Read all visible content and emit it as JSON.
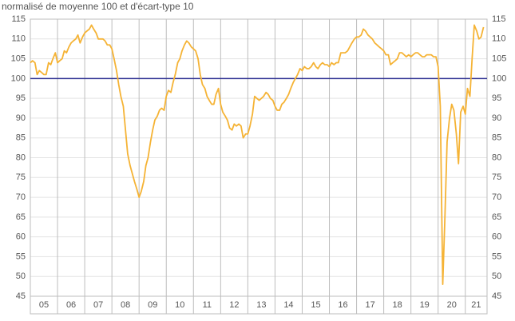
{
  "chart_data": {
    "type": "line",
    "subtitle": "normalisé de moyenne 100 et d'écart-type 10",
    "x": [
      5.0,
      5.08,
      5.17,
      5.25,
      5.33,
      5.42,
      5.5,
      5.58,
      5.67,
      5.75,
      5.83,
      5.92,
      6.0,
      6.08,
      6.17,
      6.25,
      6.33,
      6.42,
      6.5,
      6.58,
      6.67,
      6.75,
      6.83,
      6.92,
      7.0,
      7.08,
      7.17,
      7.25,
      7.33,
      7.42,
      7.5,
      7.58,
      7.67,
      7.75,
      7.83,
      7.92,
      8.0,
      8.08,
      8.17,
      8.25,
      8.33,
      8.42,
      8.5,
      8.58,
      8.67,
      8.75,
      8.83,
      8.92,
      9.0,
      9.08,
      9.17,
      9.25,
      9.33,
      9.42,
      9.5,
      9.58,
      9.67,
      9.75,
      9.83,
      9.92,
      10.0,
      10.08,
      10.17,
      10.25,
      10.33,
      10.42,
      10.5,
      10.58,
      10.67,
      10.75,
      10.83,
      10.92,
      11.0,
      11.08,
      11.17,
      11.25,
      11.33,
      11.42,
      11.5,
      11.58,
      11.67,
      11.75,
      11.83,
      11.92,
      12.0,
      12.08,
      12.17,
      12.25,
      12.33,
      12.42,
      12.5,
      12.58,
      12.67,
      12.75,
      12.83,
      12.92,
      13.0,
      13.08,
      13.17,
      13.25,
      13.33,
      13.42,
      13.5,
      13.58,
      13.67,
      13.75,
      13.83,
      13.92,
      14.0,
      14.08,
      14.17,
      14.25,
      14.33,
      14.42,
      14.5,
      14.58,
      14.67,
      14.75,
      14.83,
      14.92,
      15.0,
      15.08,
      15.17,
      15.25,
      15.33,
      15.42,
      15.5,
      15.58,
      15.67,
      15.75,
      15.83,
      15.92,
      16.0,
      16.08,
      16.17,
      16.25,
      16.33,
      16.42,
      16.5,
      16.58,
      16.67,
      16.75,
      16.83,
      16.92,
      17.0,
      17.08,
      17.17,
      17.25,
      17.33,
      17.42,
      17.5,
      17.58,
      17.67,
      17.75,
      17.83,
      17.92,
      18.0,
      18.08,
      18.17,
      18.25,
      18.33,
      18.42,
      18.5,
      18.58,
      18.67,
      18.75,
      18.83,
      18.92,
      19.0,
      19.08,
      19.17,
      19.25,
      19.33,
      19.42,
      19.5,
      19.58,
      19.67,
      19.75,
      19.83,
      19.92,
      20.0,
      20.08,
      20.17,
      20.25,
      20.33,
      20.42,
      20.5,
      20.58,
      20.67,
      20.75,
      20.83,
      20.92,
      21.0,
      21.08,
      21.17,
      21.25,
      21.33,
      21.42,
      21.5,
      21.58,
      21.67
    ],
    "series": [
      {
        "color": "#f5b335",
        "values": [
          104,
          104.5,
          104,
          101,
          102,
          101.5,
          101,
          101,
          104,
          103.5,
          105,
          106.5,
          104,
          104.5,
          105,
          107,
          106.5,
          108,
          109,
          109.5,
          110,
          111,
          109,
          110.5,
          111.5,
          112,
          112.5,
          113.5,
          112.5,
          111.5,
          110,
          110,
          110,
          109.5,
          108.5,
          108.5,
          107.5,
          105,
          102,
          98.5,
          95.5,
          93,
          87,
          81,
          78,
          76,
          74,
          72,
          70,
          71.5,
          74,
          78,
          80,
          84,
          87,
          89.5,
          90.5,
          92,
          92.5,
          92,
          95.5,
          97,
          96.5,
          99,
          101,
          104,
          105,
          107,
          108.5,
          109.5,
          109,
          108,
          107.5,
          107,
          105,
          101,
          98.5,
          97.5,
          95.5,
          94.5,
          93.5,
          93.5,
          96,
          97.5,
          93.5,
          91.5,
          90.5,
          89.5,
          87.5,
          87,
          88.5,
          88,
          88.5,
          88,
          85,
          86,
          86,
          88,
          91,
          95.5,
          95,
          94.5,
          95,
          95.5,
          96.5,
          96,
          95,
          94.5,
          93,
          92,
          92,
          93.5,
          94,
          95,
          96,
          97.5,
          99,
          100,
          101,
          102.5,
          102,
          103,
          102.5,
          102.5,
          103,
          104,
          103,
          102.5,
          103.5,
          104,
          103.5,
          103.5,
          103,
          104,
          103.5,
          104,
          104,
          106.5,
          106.5,
          106.5,
          107,
          108,
          109,
          110,
          110.5,
          110.5,
          111,
          112.5,
          112,
          111,
          110.5,
          110,
          109,
          108.5,
          108,
          107.5,
          107,
          106,
          106,
          103.5,
          104,
          104.5,
          105,
          106.5,
          106.5,
          106,
          105.5,
          106,
          105.5,
          106,
          106.5,
          106.5,
          106,
          105.5,
          105.5,
          106,
          106,
          106,
          105.5,
          105.5,
          103,
          93,
          48,
          65,
          84,
          90,
          93.5,
          92,
          86,
          78.5,
          91.5,
          93,
          91,
          97.5,
          95.5,
          105,
          113.5,
          112,
          110,
          110.5,
          113
        ]
      }
    ],
    "reference": {
      "value": 100,
      "color": "#2e3192"
    },
    "xlim": [
      5,
      21.8
    ],
    "xticks": [
      {
        "value": 5,
        "label": "05"
      },
      {
        "value": 6,
        "label": "06"
      },
      {
        "value": 7,
        "label": "07"
      },
      {
        "value": 8,
        "label": "08"
      },
      {
        "value": 9,
        "label": "09"
      },
      {
        "value": 10,
        "label": "10"
      },
      {
        "value": 11,
        "label": "11"
      },
      {
        "value": 12,
        "label": "12"
      },
      {
        "value": 13,
        "label": "13"
      },
      {
        "value": 14,
        "label": "14"
      },
      {
        "value": 15,
        "label": "15"
      },
      {
        "value": 16,
        "label": "16"
      },
      {
        "value": 17,
        "label": "17"
      },
      {
        "value": 18,
        "label": "18"
      },
      {
        "value": 19,
        "label": "19"
      },
      {
        "value": 20,
        "label": "20"
      },
      {
        "value": 21,
        "label": "21"
      }
    ],
    "ylim": [
      45,
      115
    ],
    "yticks": [
      45,
      50,
      55,
      60,
      65,
      70,
      75,
      80,
      85,
      90,
      95,
      100,
      105,
      110,
      115
    ],
    "grid": true
  }
}
